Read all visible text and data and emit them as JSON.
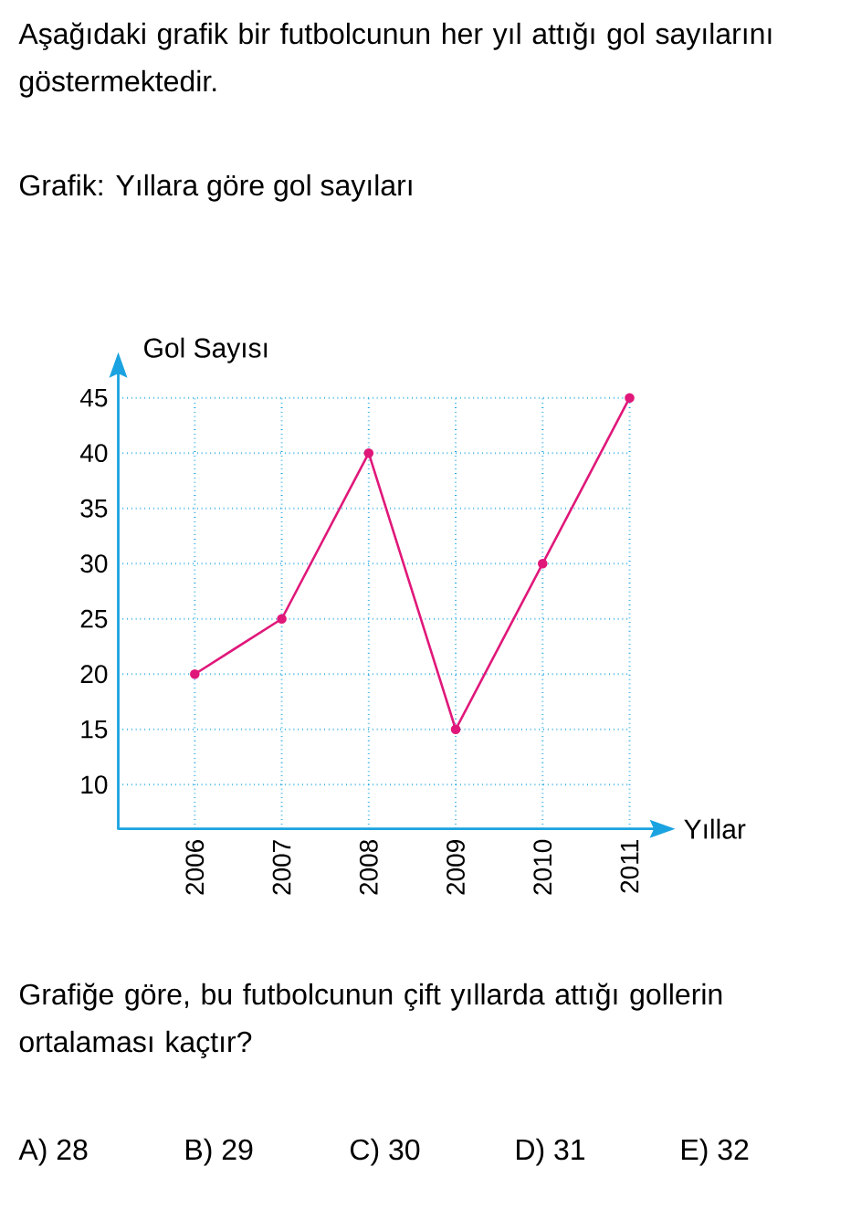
{
  "chart_data": {
    "type": "line",
    "title": "Grafik: Yıllara göre gol sayıları",
    "annotations": [
      "Aşağıdaki grafik bir futbolcunun her yıl attığı gol sayılarını göstermektedir.",
      "Grafiğe göre, bu futbolcunun çift yıllarda attığı gollerin ortalaması kaçtır?",
      "A) 28",
      "B) 29",
      "C) 30",
      "D) 31",
      "E) 32"
    ],
    "xlabel": "Yıllar",
    "ylabel": "Gol Sayısı",
    "categories": [
      "2006",
      "2007",
      "2008",
      "2009",
      "2010",
      "2011"
    ],
    "series": [
      {
        "color": "#e0187a",
        "values": [
          20,
          25,
          40,
          15,
          30,
          45
        ]
      }
    ],
    "ylim": [
      6,
      45
    ],
    "yticks": [
      10,
      15,
      20,
      25,
      30,
      35,
      40,
      45
    ],
    "grid": true,
    "marker": "circle",
    "line_style": "solid"
  }
}
